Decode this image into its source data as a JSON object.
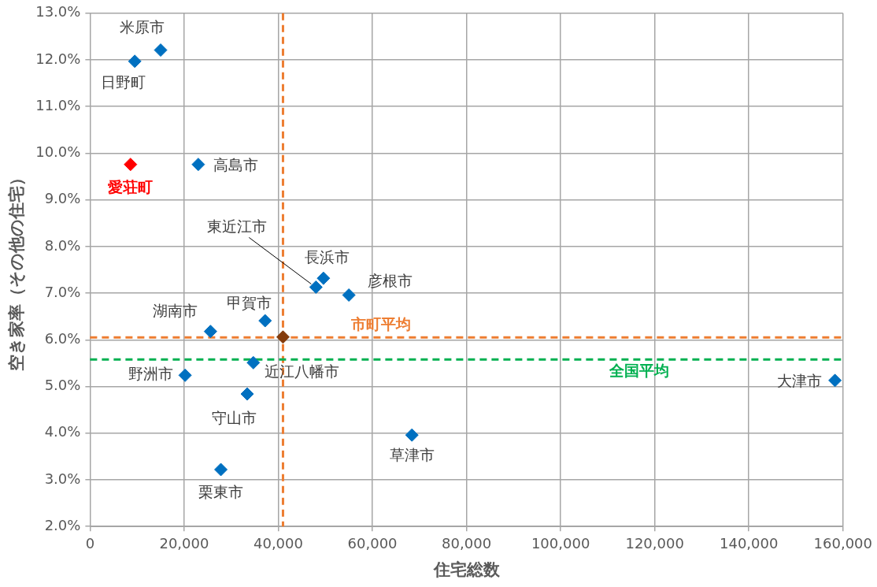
{
  "chart_data": {
    "type": "scatter",
    "xlabel": "住宅総数",
    "ylabel": "空き家率（その他の住宅）",
    "marker": "diamond",
    "grid": true,
    "legend": false,
    "xlim": [
      0,
      160000
    ],
    "ylim": [
      2,
      13
    ],
    "xticks": [
      {
        "value": 0,
        "label": "0"
      },
      {
        "value": 20000,
        "label": "20,000"
      },
      {
        "value": 40000,
        "label": "40,000"
      },
      {
        "value": 60000,
        "label": "60,000"
      },
      {
        "value": 80000,
        "label": "80,000"
      },
      {
        "value": 100000,
        "label": "100,000"
      },
      {
        "value": 120000,
        "label": "120,000"
      },
      {
        "value": 140000,
        "label": "140,000"
      },
      {
        "value": 160000,
        "label": "160,000"
      }
    ],
    "yticks": [
      {
        "value": 2,
        "label": "2.0%"
      },
      {
        "value": 3,
        "label": "3.0%"
      },
      {
        "value": 4,
        "label": "4.0%"
      },
      {
        "value": 5,
        "label": "5.0%"
      },
      {
        "value": 6,
        "label": "6.0%"
      },
      {
        "value": 7,
        "label": "7.0%"
      },
      {
        "value": 8,
        "label": "8.0%"
      },
      {
        "value": 9,
        "label": "9.0%"
      },
      {
        "value": 10,
        "label": "10.0%"
      },
      {
        "value": 11,
        "label": "11.0%"
      },
      {
        "value": 12,
        "label": "12.0%"
      },
      {
        "value": 13,
        "label": "13.0%"
      }
    ],
    "series": [
      {
        "color": "#0070c0",
        "x": [
          15000,
          9500,
          23000,
          48000,
          49600,
          55000,
          37200,
          25600,
          34700,
          20200,
          33400,
          27800,
          68400,
          158300
        ],
        "values": [
          12.21,
          11.97,
          9.76,
          7.13,
          7.32,
          6.96,
          6.41,
          6.18,
          5.51,
          5.24,
          4.84,
          3.22,
          3.96,
          5.13
        ]
      },
      {
        "name": "愛荘町",
        "color": "#ff0000",
        "x": [
          8600
        ],
        "values": [
          9.76
        ]
      },
      {
        "color": "#843c0c",
        "x": [
          41000
        ],
        "values": [
          6.06
        ]
      }
    ],
    "ref_lines": [
      {
        "axis": "y",
        "value": 6.05,
        "label": "市町平均",
        "color": "#ed7d31",
        "line_style": "dashed"
      },
      {
        "axis": "x",
        "value": 41000,
        "color": "#ed7d31",
        "line_style": "dashed"
      },
      {
        "axis": "y",
        "value": 5.58,
        "label": "全国平均",
        "color": "#00b050",
        "line_style": "dashed"
      }
    ],
    "annotations": [
      {
        "text": "米原市",
        "x": 15000,
        "y": 12.21
      },
      {
        "text": "日野町",
        "x": 9500,
        "y": 11.97
      },
      {
        "text": "高島市",
        "x": 23000,
        "y": 9.76
      },
      {
        "text": "東近江市",
        "x": 48000,
        "y": 7.13
      },
      {
        "text": "長浜市",
        "x": 49600,
        "y": 7.32
      },
      {
        "text": "彦根市",
        "x": 55000,
        "y": 6.96
      },
      {
        "text": "甲賀市",
        "x": 37200,
        "y": 6.41
      },
      {
        "text": "湖南市",
        "x": 25600,
        "y": 6.18
      },
      {
        "text": "近江八幡市",
        "x": 34700,
        "y": 5.51
      },
      {
        "text": "野洲市",
        "x": 20200,
        "y": 5.24
      },
      {
        "text": "守山市",
        "x": 33400,
        "y": 4.84
      },
      {
        "text": "栗東市",
        "x": 27800,
        "y": 3.22
      },
      {
        "text": "草津市",
        "x": 68400,
        "y": 3.96
      },
      {
        "text": "大津市",
        "x": 158300,
        "y": 5.13
      }
    ]
  }
}
